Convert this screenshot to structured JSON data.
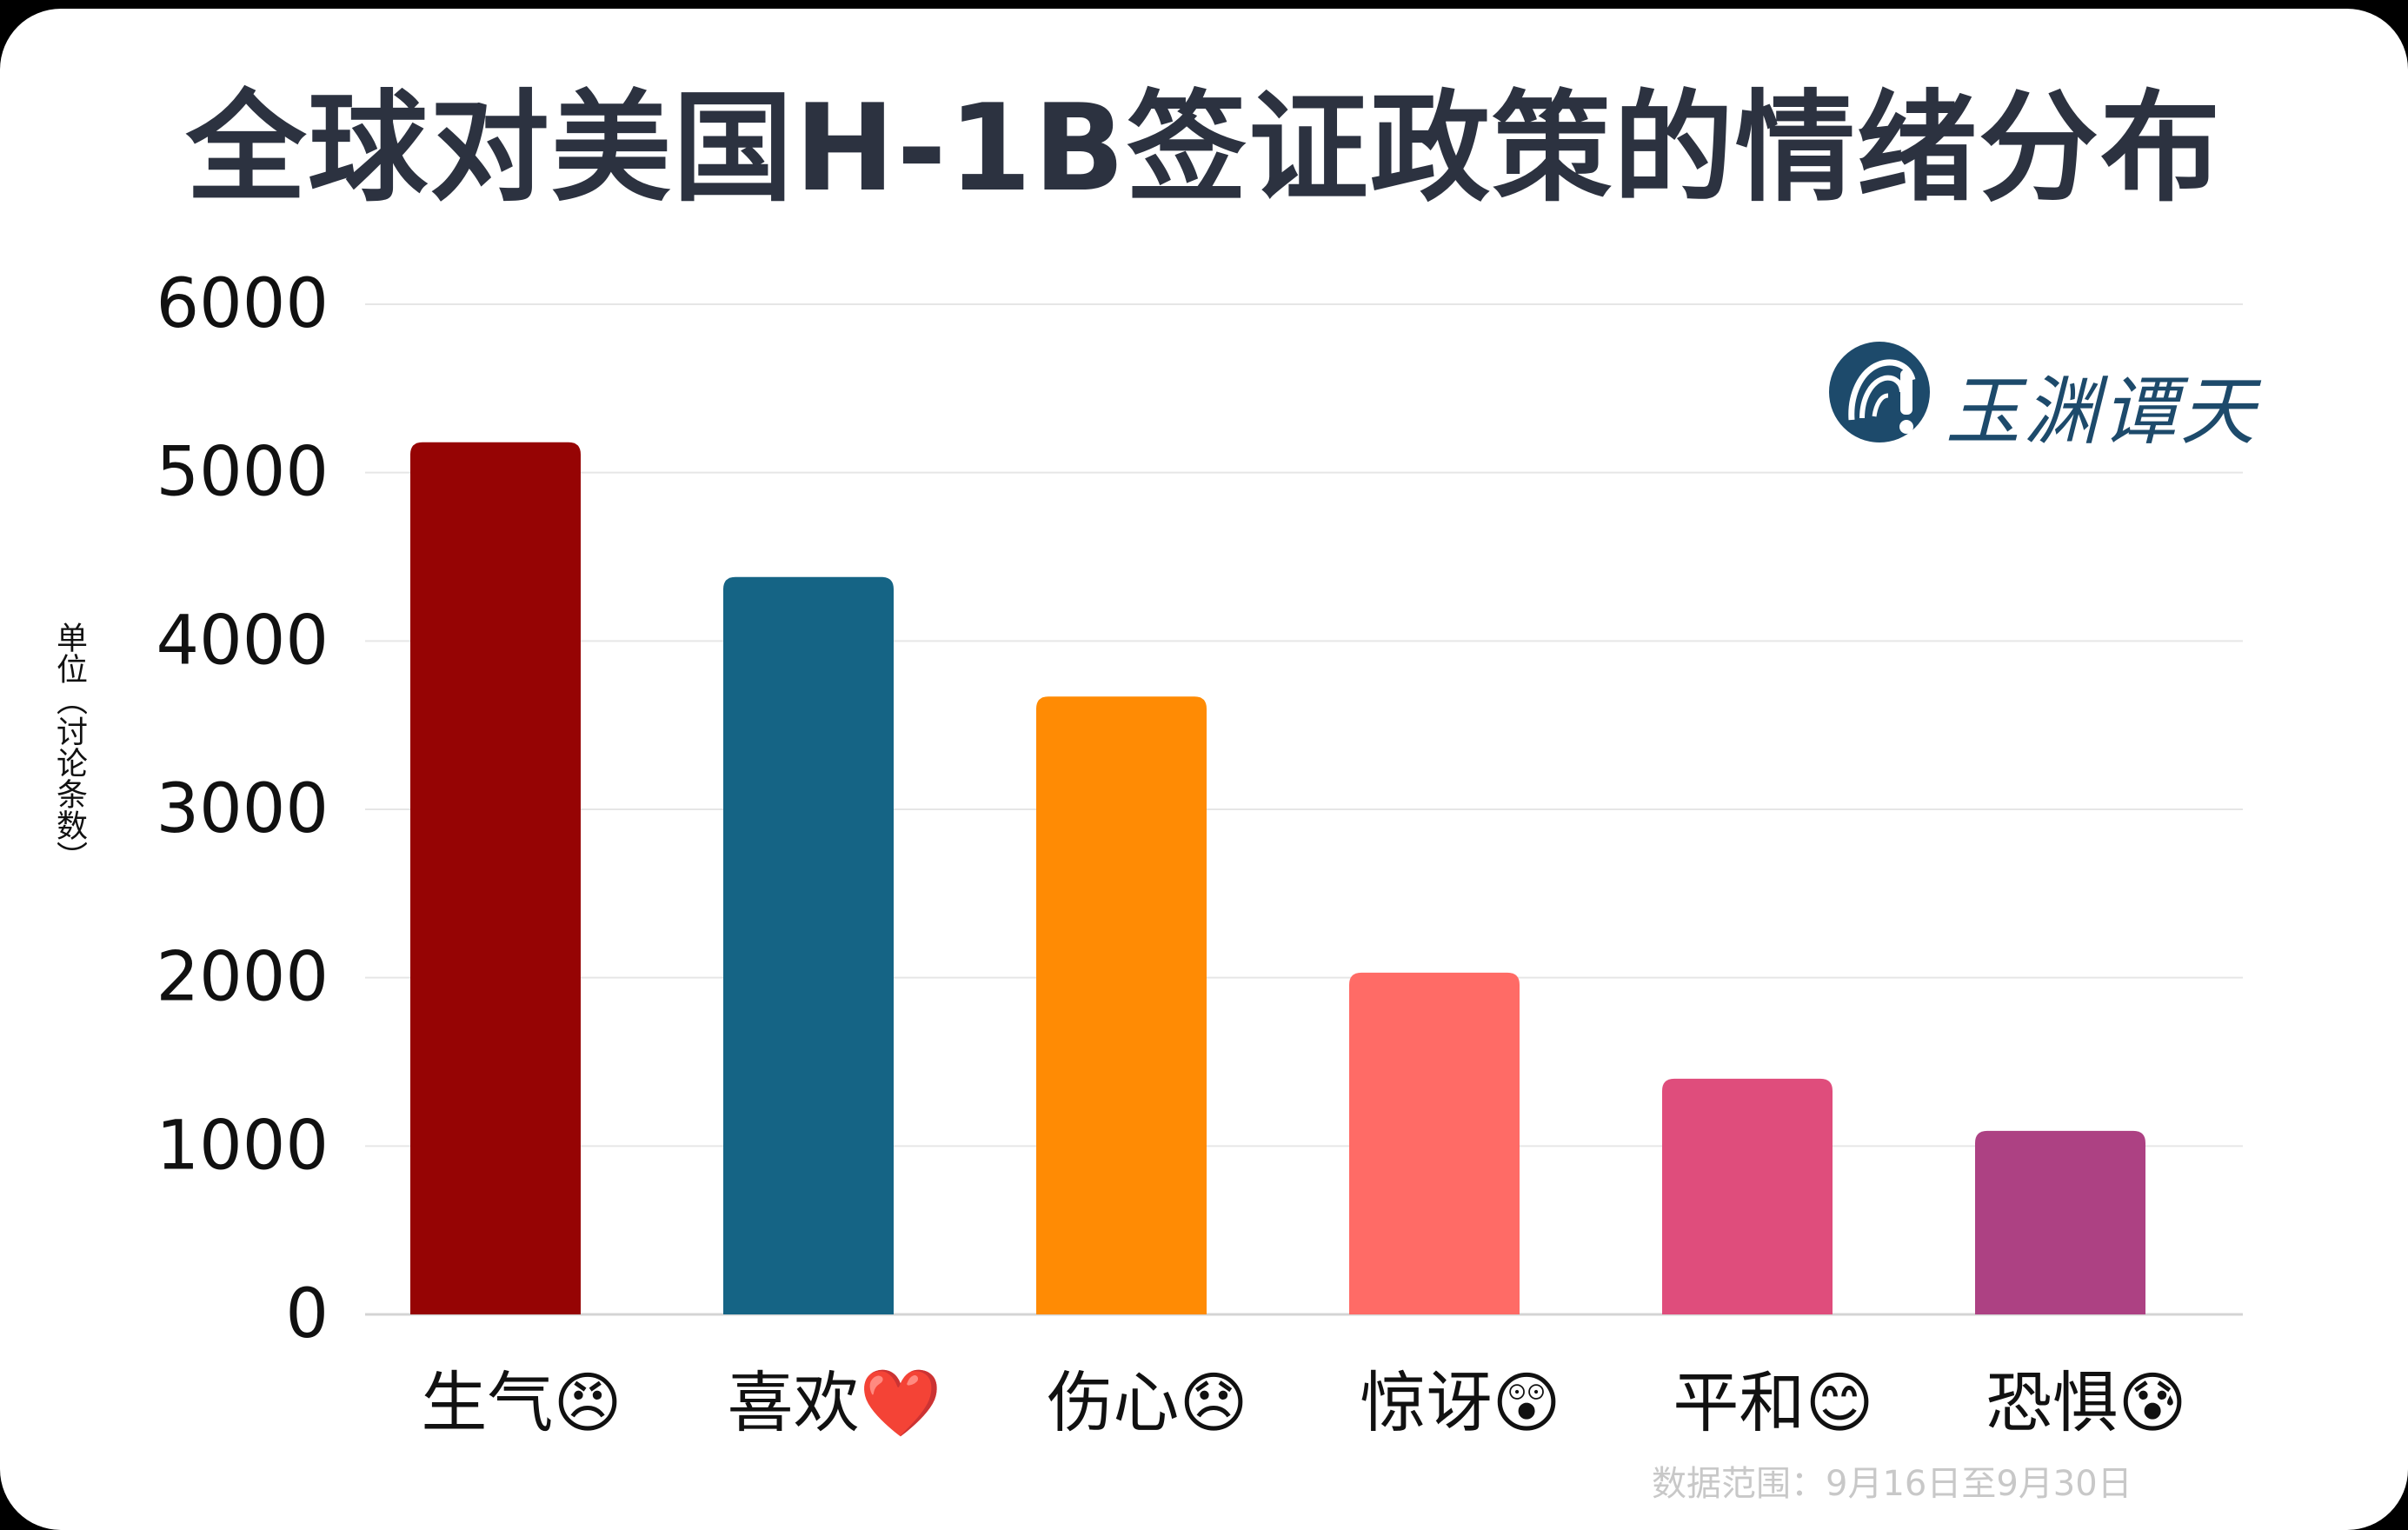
{
  "title": "全球对美国H-1B签证政策的情绪分布",
  "footnote": "数据范围：9月16日至9月30日",
  "brand": {
    "name": "玉渊谭天"
  },
  "chart_data": {
    "type": "bar",
    "title": "全球对美国H-1B签证政策的情绪分布",
    "ylabel": "单位（讨论条数）",
    "xlabel": "",
    "ylim": [
      0,
      6000
    ],
    "yticks": [
      0,
      1000,
      2000,
      3000,
      4000,
      5000,
      6000
    ],
    "grid": true,
    "categories": [
      "生气😠",
      "喜欢❤️",
      "伤心😞",
      "惊讶😲",
      "平和😊",
      "恐惧😰"
    ],
    "values": [
      5180,
      4380,
      3670,
      2030,
      1400,
      1090
    ],
    "colors": [
      "#960404",
      "#156485",
      "#ff8b04",
      "#ff6b66",
      "#df4d7c",
      "#ad4183"
    ]
  }
}
